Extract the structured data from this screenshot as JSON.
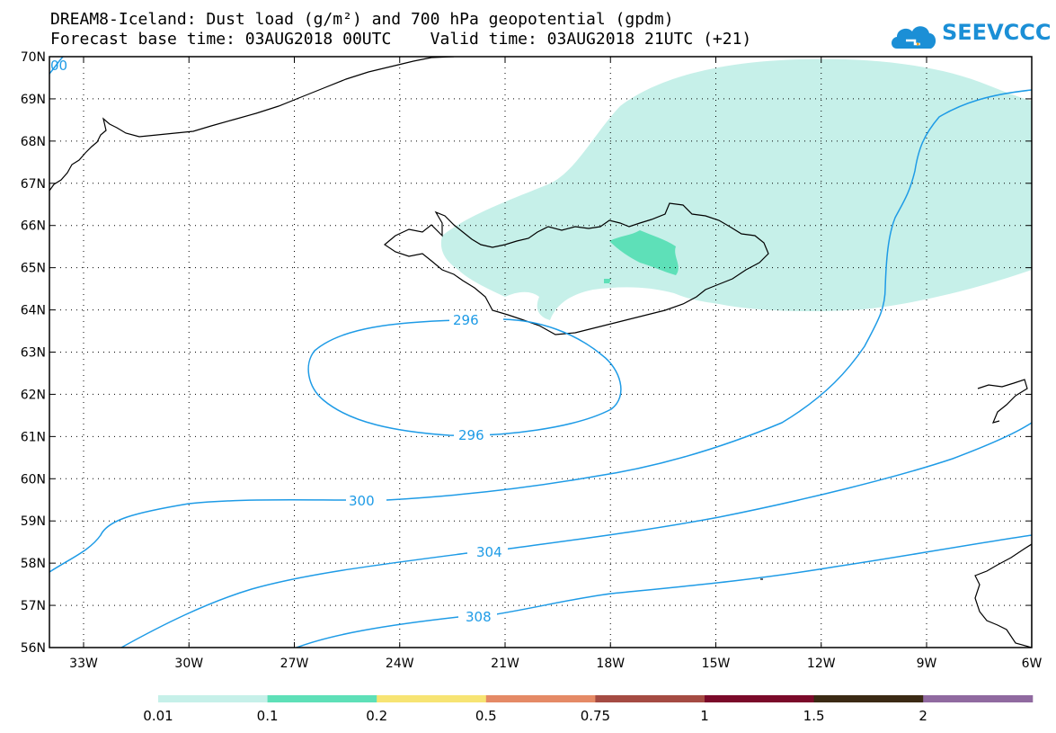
{
  "title_line1": "DREAM8-Iceland: Dust load (g/m²) and 700 hPa geopotential (gpdm)",
  "title_line2": "Forecast base time: 03AUG2018 00UTC    Valid time: 03AUG2018 21UTC (+21)",
  "logo": {
    "text": "SEEVCCC",
    "icon": "cloud-logo-icon",
    "color": "#1b8fd6"
  },
  "lat_labels": [
    "70N",
    "69N",
    "68N",
    "67N",
    "66N",
    "65N",
    "64N",
    "63N",
    "62N",
    "61N",
    "60N",
    "59N",
    "58N",
    "57N",
    "56N"
  ],
  "lon_labels": [
    "33W",
    "30W",
    "27W",
    "24W",
    "21W",
    "18W",
    "15W",
    "12W",
    "9W",
    "6W"
  ],
  "contours": [
    {
      "value": "296",
      "label_positions": 2,
      "color": "#1e9be6"
    },
    {
      "value": "300",
      "color": "#1e9be6"
    },
    {
      "value": "304",
      "color": "#1e9be6"
    },
    {
      "value": "308",
      "color": "#1e9be6"
    }
  ],
  "partial_contour_label": "00",
  "dust_colors": {
    "level_0_01": "#c6f0e9",
    "level_0_1": "#5ee0b8"
  },
  "colorbar": {
    "colors": [
      "#c6f0e9",
      "#5ee0b8",
      "#f7e473",
      "#e58a66",
      "#a54b43",
      "#7b0a2a",
      "#3b2a14",
      "#906aa0"
    ],
    "labels": [
      "0.01",
      "0.1",
      "0.2",
      "0.5",
      "0.75",
      "1",
      "1.5",
      "2"
    ]
  }
}
